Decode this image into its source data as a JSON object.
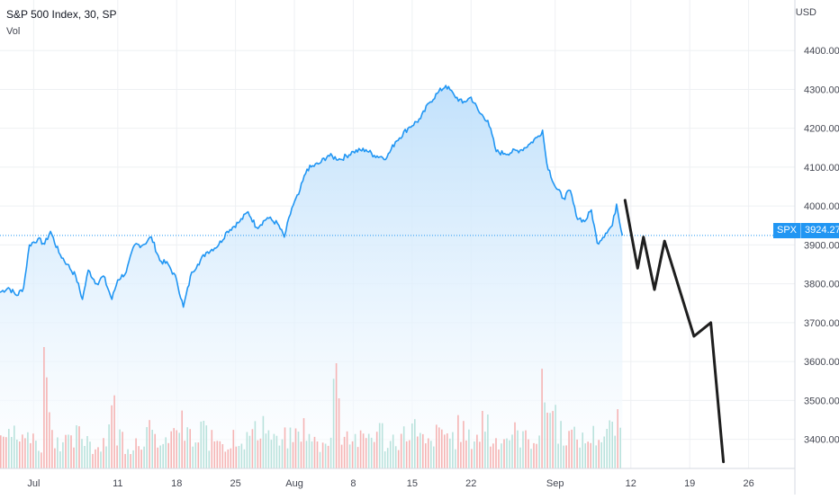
{
  "header": {
    "title": "S&P 500 Index, 30, SP",
    "volume_label": "Vol",
    "currency": "USD"
  },
  "last_price": {
    "symbol": "SPX",
    "value_text": "3924.27",
    "value": 3924.27
  },
  "colors": {
    "line": "#2196f3",
    "area_top": "#bbdefb",
    "area_bottom": "#ffffff",
    "projection": "#1e1e1e",
    "vol_up": "#b9e2dc",
    "vol_down": "#f5b4b4",
    "grid": "#eef0f3",
    "badge": "#2196f3"
  },
  "chart_data": {
    "type": "line",
    "x_tick_labels": [
      "Jul",
      "11",
      "18",
      "25",
      "Aug",
      "8",
      "15",
      "22",
      "Sep",
      "12",
      "19",
      "26"
    ],
    "x_tick_positions_days": [
      4,
      14,
      21,
      28,
      35,
      42,
      49,
      56,
      66,
      75,
      82,
      89
    ],
    "y_tick_labels": [
      "3400.00",
      "3500.00",
      "3600.00",
      "3700.00",
      "3800.00",
      "3900.00",
      "4000.00",
      "4100.00",
      "4200.00",
      "4300.00",
      "4400.00"
    ],
    "y_ticks": [
      3400,
      3500,
      3600,
      3700,
      3800,
      3900,
      4000,
      4100,
      4200,
      4300,
      4400
    ],
    "ylim": [
      3325,
      4530
    ],
    "xlim_days": [
      0,
      94.5
    ],
    "price_series": [
      [
        0.0,
        3778
      ],
      [
        1.0,
        3790
      ],
      [
        2.0,
        3770
      ],
      [
        2.8,
        3790
      ],
      [
        3.5,
        3900
      ],
      [
        4.5,
        3915
      ],
      [
        5.3,
        3902
      ],
      [
        6.0,
        3935
      ],
      [
        7.0,
        3880
      ],
      [
        8.0,
        3850
      ],
      [
        9.0,
        3820
      ],
      [
        9.8,
        3760
      ],
      [
        10.5,
        3835
      ],
      [
        11.5,
        3800
      ],
      [
        12.3,
        3820
      ],
      [
        13.3,
        3760
      ],
      [
        14.0,
        3810
      ],
      [
        15.0,
        3830
      ],
      [
        16.0,
        3900
      ],
      [
        17.0,
        3900
      ],
      [
        18.0,
        3920
      ],
      [
        19.0,
        3860
      ],
      [
        20.0,
        3850
      ],
      [
        21.0,
        3810
      ],
      [
        21.8,
        3740
      ],
      [
        22.8,
        3830
      ],
      [
        23.5,
        3850
      ],
      [
        24.5,
        3880
      ],
      [
        26.0,
        3900
      ],
      [
        27.0,
        3935
      ],
      [
        28.5,
        3960
      ],
      [
        29.5,
        3985
      ],
      [
        30.5,
        3945
      ],
      [
        31.8,
        3970
      ],
      [
        33.0,
        3955
      ],
      [
        33.8,
        3920
      ],
      [
        34.7,
        3995
      ],
      [
        35.5,
        4030
      ],
      [
        36.5,
        4095
      ],
      [
        38.0,
        4110
      ],
      [
        39.0,
        4130
      ],
      [
        40.5,
        4120
      ],
      [
        42.0,
        4140
      ],
      [
        43.5,
        4145
      ],
      [
        44.5,
        4130
      ],
      [
        46.0,
        4125
      ],
      [
        47.0,
        4165
      ],
      [
        48.5,
        4200
      ],
      [
        50.0,
        4225
      ],
      [
        51.0,
        4265
      ],
      [
        52.0,
        4290
      ],
      [
        53.0,
        4310
      ],
      [
        54.0,
        4285
      ],
      [
        55.0,
        4265
      ],
      [
        56.0,
        4280
      ],
      [
        57.0,
        4240
      ],
      [
        58.0,
        4220
      ],
      [
        59.0,
        4140
      ],
      [
        60.0,
        4135
      ],
      [
        62.0,
        4145
      ],
      [
        63.0,
        4160
      ],
      [
        64.0,
        4180
      ],
      [
        64.5,
        4195
      ],
      [
        65.0,
        4110
      ],
      [
        66.0,
        4050
      ],
      [
        67.0,
        4020
      ],
      [
        67.8,
        4040
      ],
      [
        68.5,
        3975
      ],
      [
        69.5,
        3960
      ],
      [
        70.3,
        3990
      ],
      [
        71.0,
        3905
      ],
      [
        72.0,
        3930
      ],
      [
        72.8,
        3950
      ],
      [
        73.3,
        4005
      ],
      [
        74.0,
        3924
      ]
    ],
    "projection_series": [
      [
        74.3,
        4015
      ],
      [
        75.8,
        3840
      ],
      [
        76.5,
        3920
      ],
      [
        77.8,
        3785
      ],
      [
        79.0,
        3910
      ],
      [
        82.5,
        3665
      ],
      [
        84.5,
        3700
      ],
      [
        86.0,
        3342
      ]
    ],
    "volume_relative": [
      0.45,
      0.3,
      0.25,
      0.35,
      0.2,
      1.0,
      0.3,
      0.25,
      0.22,
      0.3,
      0.28,
      0.18,
      0.25,
      0.55,
      0.3,
      0.2,
      0.25,
      0.33,
      0.27,
      0.2,
      0.3,
      0.4,
      0.3,
      0.22,
      0.35,
      0.25,
      0.28,
      0.2,
      0.31,
      0.26,
      0.33,
      0.45,
      0.3,
      0.22,
      0.27,
      0.3,
      0.38,
      0.25,
      0.2,
      0.3,
      0.85,
      0.32,
      0.28,
      0.25,
      0.3,
      0.34,
      0.22,
      0.27,
      0.3,
      0.38,
      0.25,
      0.21,
      0.3,
      0.33,
      0.28,
      0.36,
      0.26,
      0.3,
      0.45,
      0.25,
      0.28,
      0.32,
      0.3,
      0.26,
      0.3,
      0.7,
      0.55,
      0.35,
      0.3,
      0.28,
      0.25,
      0.3,
      0.3,
      0.35,
      0.4
    ]
  }
}
